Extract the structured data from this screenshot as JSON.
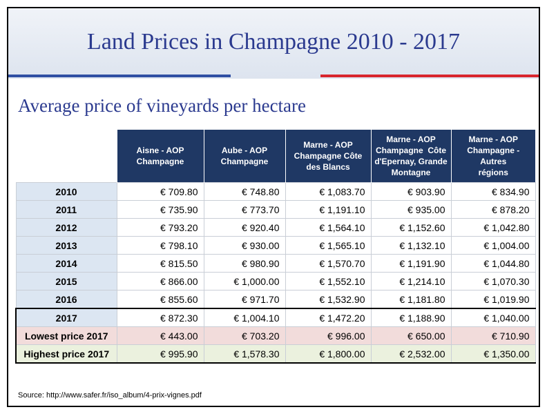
{
  "title": "Land Prices in Champagne 2010 - 2017",
  "subtitle": "Average price of vineyards per hectare",
  "colors": {
    "title": "#2b3a8f",
    "header_bg": "#1f3864",
    "year_bg": "#dce6f2",
    "low_bg": "#f2dcdb",
    "high_bg": "#ebf1de",
    "bar_blue": "#2f4fa3",
    "bar_red": "#d8262e"
  },
  "table": {
    "headers": [
      [
        "Aisne - AOP",
        "Champagne"
      ],
      [
        "Aube - AOP",
        "Champagne"
      ],
      [
        "Marne - AOP",
        "Champagne Côte",
        "des Blancs"
      ],
      [
        "Marne - AOP",
        "Champagne  Côte",
        "d'Epernay, Grande",
        "Montagne"
      ],
      [
        "Marne - AOP",
        "Champagne - Autres",
        "régions"
      ]
    ],
    "rows": [
      {
        "label": "2010",
        "values": [
          "€ 709.80",
          "€ 748.80",
          "€ 1,083.70",
          "€ 903.90",
          "€ 834.90"
        ]
      },
      {
        "label": "2011",
        "values": [
          "€ 735.90",
          "€ 773.70",
          "€ 1,191.10",
          "€ 935.00",
          "€ 878.20"
        ]
      },
      {
        "label": "2012",
        "values": [
          "€ 793.20",
          "€ 920.40",
          "€ 1,564.10",
          "€ 1,152.60",
          "€ 1,042.80"
        ]
      },
      {
        "label": "2013",
        "values": [
          "€ 798.10",
          "€ 930.00",
          "€ 1,565.10",
          "€ 1,132.10",
          "€ 1,004.00"
        ]
      },
      {
        "label": "2014",
        "values": [
          "€ 815.50",
          "€ 980.90",
          "€ 1,570.70",
          "€ 1,191.90",
          "€ 1,044.80"
        ]
      },
      {
        "label": "2015",
        "values": [
          "€ 866.00",
          "€ 1,000.00",
          "€ 1,552.10",
          "€ 1,214.10",
          "€ 1,070.30"
        ]
      },
      {
        "label": "2016",
        "values": [
          "€ 855.60",
          "€ 971.70",
          "€ 1,532.90",
          "€ 1,181.80",
          "€ 1,019.90"
        ]
      },
      {
        "label": "2017",
        "values": [
          "€ 872.30",
          "€ 1,004.10",
          "€ 1,472.20",
          "€ 1,188.90",
          "€ 1,040.00"
        ]
      },
      {
        "label": "Lowest price 2017",
        "values": [
          "€ 443.00",
          "€ 703.20",
          "€ 996.00",
          "€ 650.00",
          "€ 710.90"
        ]
      },
      {
        "label": "Highest price 2017",
        "values": [
          "€ 995.90",
          "€ 1,578.30",
          "€ 1,800.00",
          "€ 2,532.00",
          "€ 1,350.00"
        ]
      }
    ]
  },
  "source": "Source: http://www.safer.fr/iso_album/4-prix-vignes.pdf"
}
